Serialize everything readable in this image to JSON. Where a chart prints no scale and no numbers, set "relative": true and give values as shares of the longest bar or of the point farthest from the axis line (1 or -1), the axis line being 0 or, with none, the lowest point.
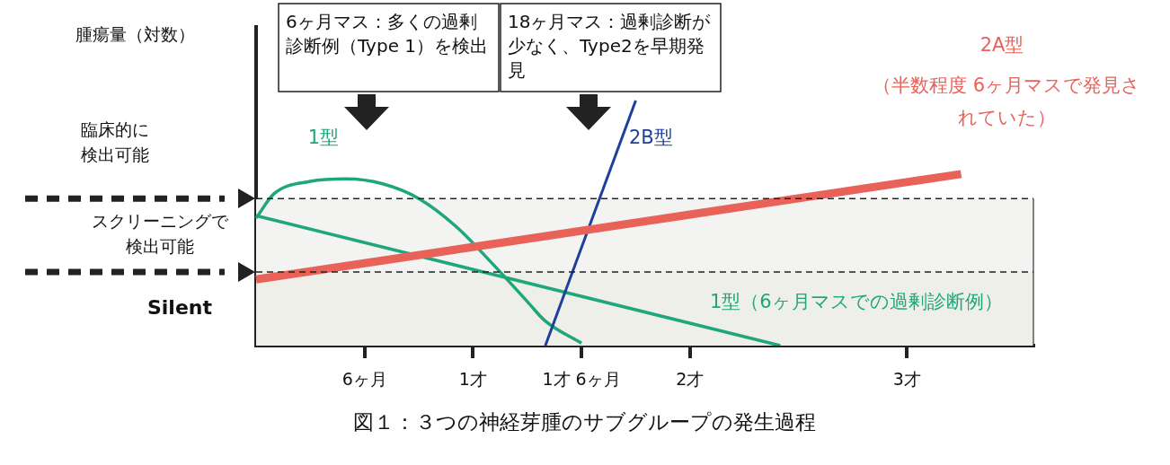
{
  "chart_data": {
    "type": "line",
    "relative": true,
    "title": "図１：３つの神経芽腫のサブグループの発生過程",
    "ylabel": "腫瘍量（対数）",
    "categories": [
      null,
      null,
      null,
      null,
      null,
      null,
      "6ヶ月",
      null,
      null,
      null,
      null,
      null,
      "1才",
      null,
      null,
      null,
      null,
      null,
      "1才 6ヶ月",
      null,
      null,
      null,
      null,
      null,
      "2才",
      null,
      null,
      null,
      null,
      null,
      null,
      null,
      null,
      null,
      null,
      null,
      "3才",
      null,
      null,
      null,
      null,
      null,
      null,
      null
    ],
    "series": [
      {
        "name": "1型",
        "color": "#1fa67a",
        "values": [
          0.52,
          0.62,
          null,
          0.67,
          null,
          0.68,
          null,
          0.66,
          null,
          0.6,
          null,
          0.49,
          null,
          0.34,
          null,
          0.18,
          0.1,
          null,
          0.01,
          null,
          null,
          null,
          null,
          null,
          null,
          null,
          null,
          null,
          null,
          null,
          null,
          null,
          null,
          null,
          null,
          null,
          null,
          null,
          null,
          null,
          null,
          null,
          null,
          null
        ]
      },
      {
        "name": "1型（6ヶ月マスでの過剰診断例）",
        "color": "#1fa67a",
        "values": [
          0.53,
          null,
          null,
          null,
          null,
          null,
          null,
          null,
          null,
          null,
          null,
          null,
          null,
          null,
          null,
          null,
          null,
          null,
          null,
          null,
          null,
          null,
          null,
          null,
          null,
          null,
          null,
          null,
          null,
          0,
          null,
          null,
          null,
          null,
          null,
          null,
          null,
          null,
          null,
          null,
          null,
          null,
          null,
          null
        ]
      },
      {
        "name": "2B型",
        "color": "#1f3f9a",
        "values": [
          null,
          null,
          null,
          null,
          null,
          null,
          null,
          null,
          null,
          null,
          null,
          null,
          null,
          null,
          null,
          null,
          0,
          null,
          null,
          null,
          null,
          1,
          null,
          null,
          null,
          null,
          null,
          null,
          null,
          null,
          null,
          null,
          null,
          null,
          null,
          null,
          null,
          null,
          null,
          null,
          null,
          null,
          null,
          null
        ]
      },
      {
        "name": "2A型",
        "color": "#e8625a",
        "values": [
          0.27,
          null,
          null,
          null,
          null,
          null,
          null,
          null,
          null,
          null,
          null,
          null,
          null,
          null,
          null,
          null,
          null,
          null,
          null,
          null,
          null,
          null,
          null,
          null,
          null,
          null,
          null,
          null,
          null,
          null,
          null,
          null,
          null,
          null,
          null,
          null,
          null,
          null,
          null,
          0.7,
          null,
          null,
          null,
          null
        ]
      }
    ],
    "bands": [
      {
        "axis": "y",
        "from": 0.3,
        "to": 0.6,
        "label": "スクリーニングで検出可能",
        "color": "#f3f3f1"
      },
      {
        "axis": "y",
        "from": 0,
        "to": 0.3,
        "label": "Silent",
        "color": "#efefea"
      }
    ],
    "ref_lines": [
      {
        "axis": "y",
        "value": 0.6,
        "line_style": "dashed"
      },
      {
        "axis": "y",
        "value": 0.3,
        "line_style": "dashed"
      }
    ],
    "annotations": [
      "臨床的に検出可能",
      "6ヶ月マス：多くの過剰診断例（Type 1）を検出",
      "18ヶ月マス：過剰診断が少なく、Type2を早期発見",
      "（半数程度 6ヶ月マスで発見されていた）"
    ],
    "grid": false,
    "legend": false,
    "marker": "none",
    "line_style": "solid"
  }
}
